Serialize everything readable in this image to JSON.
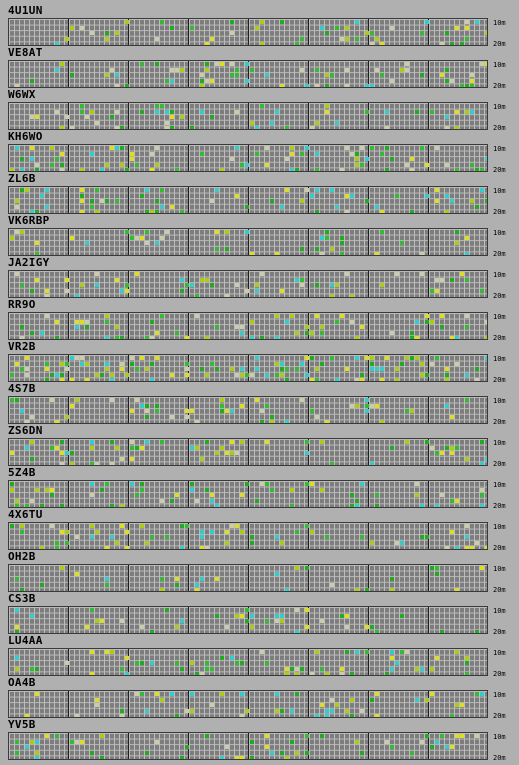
{
  "band_labels": {
    "top": "10m",
    "bottom": "20m"
  },
  "cell_colors": [
    "#33bb33",
    "#aacc11",
    "#dddd22",
    "#ccccaa",
    "#33cccc",
    "#22aa22"
  ],
  "stations": [
    {
      "callsign": "4U1UN",
      "activity": 0.1
    },
    {
      "callsign": "VE8AT",
      "activity": 0.12
    },
    {
      "callsign": "W6WX",
      "activity": 0.1
    },
    {
      "callsign": "KH6WO",
      "activity": 0.13
    },
    {
      "callsign": "ZL6B",
      "activity": 0.12
    },
    {
      "callsign": "VK6RBP",
      "activity": 0.09
    },
    {
      "callsign": "JA2IGY",
      "activity": 0.11
    },
    {
      "callsign": "RR9O",
      "activity": 0.12
    },
    {
      "callsign": "VR2B",
      "activity": 0.22
    },
    {
      "callsign": "4S7B",
      "activity": 0.1
    },
    {
      "callsign": "ZS6DN",
      "activity": 0.11
    },
    {
      "callsign": "5Z4B",
      "activity": 0.12
    },
    {
      "callsign": "4X6TU",
      "activity": 0.1
    },
    {
      "callsign": "OH2B",
      "activity": 0.07
    },
    {
      "callsign": "CS3B",
      "activity": 0.08
    },
    {
      "callsign": "LU4AA",
      "activity": 0.11
    },
    {
      "callsign": "OA4B",
      "activity": 0.09
    },
    {
      "callsign": "YV5B",
      "activity": 0.09
    }
  ]
}
